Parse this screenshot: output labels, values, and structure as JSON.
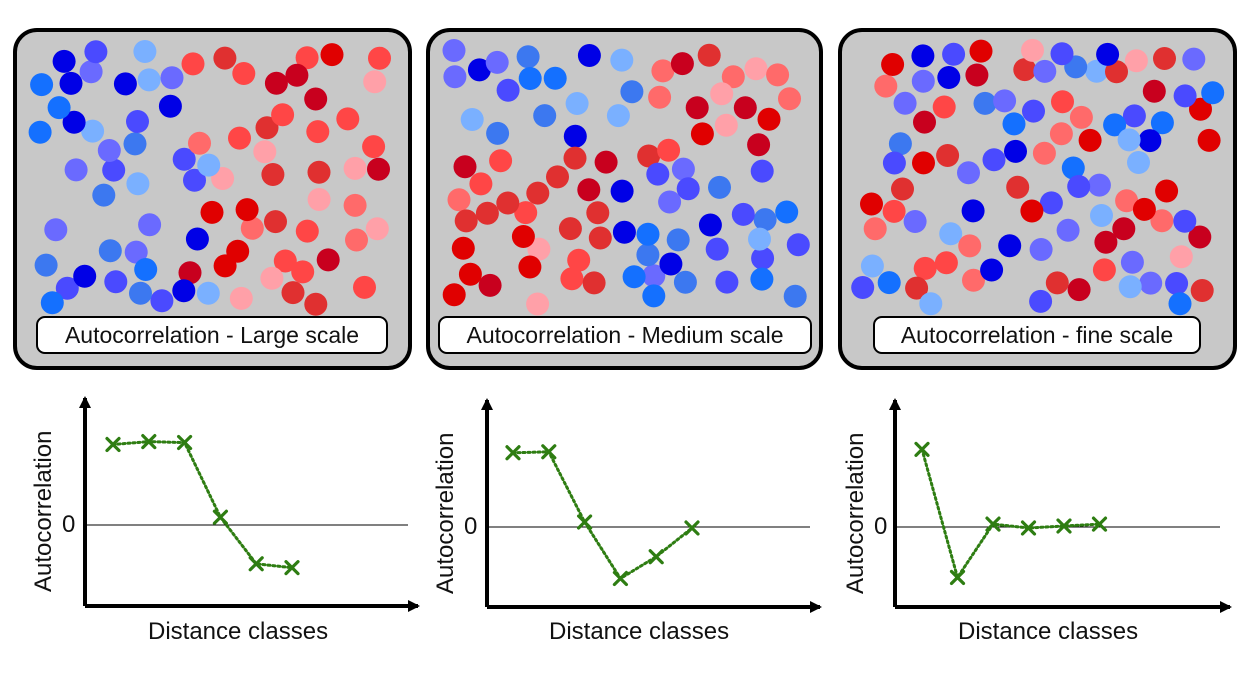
{
  "panels": [
    {
      "label": "Autocorrelation - Large scale"
    },
    {
      "label": "Autocorrelation - Medium scale"
    },
    {
      "label": "Autocorrelation - fine scale"
    }
  ],
  "colors": {
    "panel_bg": "#c8c8c8",
    "reds": [
      "#e00000",
      "#c8001e",
      "#ff4646",
      "#ff6a6a",
      "#ffa0a8",
      "#e03030"
    ],
    "blues": [
      "#0000e6",
      "#4a4aff",
      "#6a6aff",
      "#7ab0ff",
      "#1470ff",
      "#3c78f0"
    ],
    "line": "#2e7d12"
  },
  "chart_data": [
    {
      "type": "line",
      "xlabel": "Distance classes",
      "ylabel": "Autocorrelation",
      "yticks": [
        "0"
      ],
      "x": [
        1,
        2,
        3,
        4,
        5,
        6
      ],
      "series": [
        {
          "values": [
            0.83,
            0.86,
            0.85,
            0.08,
            -0.4,
            -0.44
          ]
        }
      ]
    },
    {
      "type": "line",
      "xlabel": "Distance classes",
      "ylabel": "Autocorrelation",
      "yticks": [
        "0"
      ],
      "x": [
        1,
        2,
        3,
        4,
        5,
        6
      ],
      "series": [
        {
          "values": [
            0.75,
            0.76,
            0.05,
            -0.52,
            -0.3,
            -0.01
          ]
        }
      ]
    },
    {
      "type": "line",
      "xlabel": "Distance classes",
      "ylabel": "Autocorrelation",
      "yticks": [
        "0"
      ],
      "x": [
        1,
        2,
        3,
        4,
        5,
        6
      ],
      "series": [
        {
          "values": [
            0.8,
            -0.52,
            0.03,
            -0.01,
            0.01,
            0.03
          ]
        }
      ]
    }
  ]
}
